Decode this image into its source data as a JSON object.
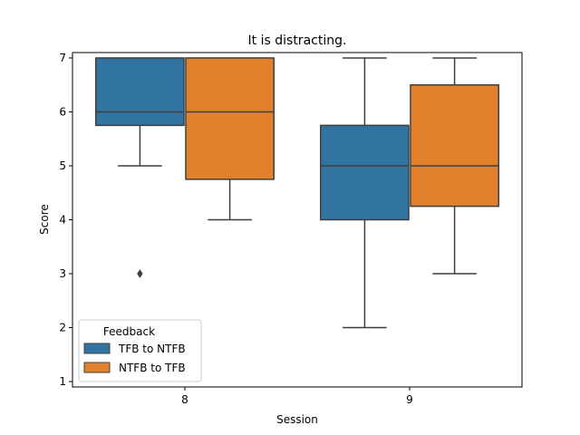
{
  "chart_data": {
    "type": "box",
    "title": "It is distracting.",
    "xlabel": "Session",
    "ylabel": "Score",
    "categories": [
      "8",
      "9"
    ],
    "ylim": [
      0.9,
      7.1
    ],
    "yticks": [
      1,
      2,
      3,
      4,
      5,
      6,
      7
    ],
    "legend": {
      "title": "Feedback",
      "placement": "lower-left"
    },
    "series": [
      {
        "name": "TFB to NTFB",
        "color": "#3274a1",
        "boxes": [
          {
            "category": "8",
            "whisker_low": 5,
            "q1": 5.75,
            "median": 6,
            "q3": 7,
            "whisker_high": 7,
            "outliers": [
              3
            ]
          },
          {
            "category": "9",
            "whisker_low": 2,
            "q1": 4,
            "median": 5,
            "q3": 5.75,
            "whisker_high": 7,
            "outliers": []
          }
        ]
      },
      {
        "name": "NTFB to TFB",
        "color": "#e1812c",
        "boxes": [
          {
            "category": "8",
            "whisker_low": 4,
            "q1": 4.75,
            "median": 6,
            "q3": 7,
            "whisker_high": 7,
            "outliers": []
          },
          {
            "category": "9",
            "whisker_low": 3,
            "q1": 4.25,
            "median": 5,
            "q3": 6.5,
            "whisker_high": 7,
            "outliers": []
          }
        ]
      }
    ]
  }
}
